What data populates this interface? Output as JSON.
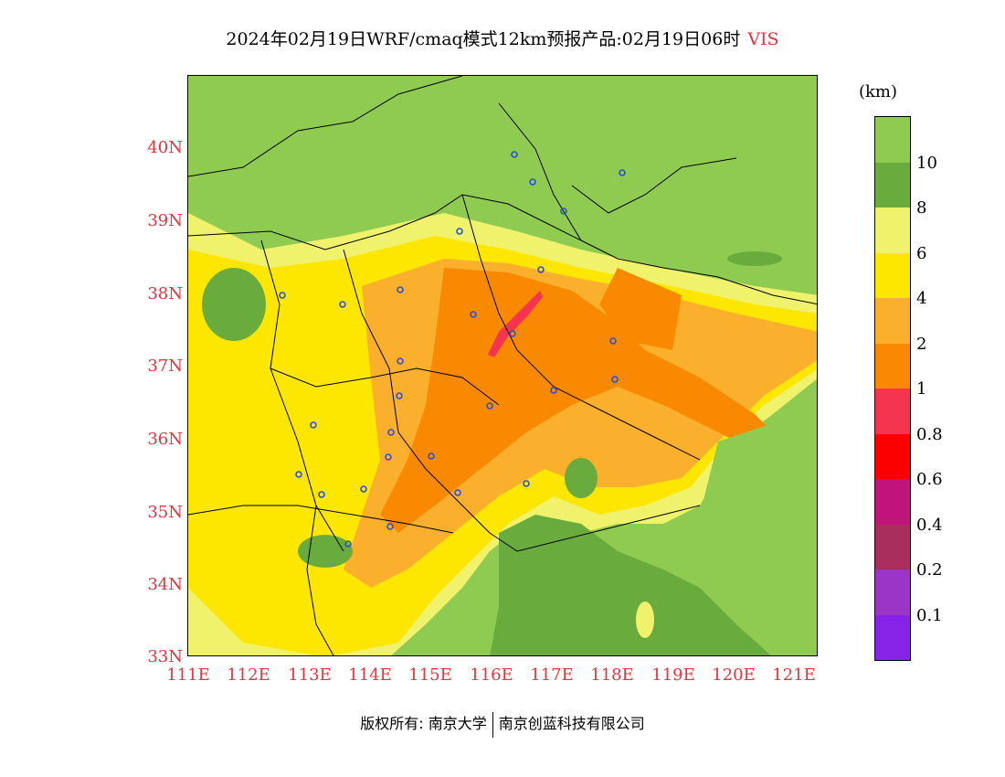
{
  "header": {
    "title": "2024年02月19日WRF/cmaq模式12km预报产品:02月19日06时",
    "variable": "VIS"
  },
  "map": {
    "lat_labels": [
      "40N",
      "39N",
      "38N",
      "37N",
      "36N",
      "35N",
      "34N",
      "33N"
    ],
    "lon_labels": [
      "111E",
      "112E",
      "113E",
      "114E",
      "115E",
      "116E",
      "117E",
      "118E",
      "119E",
      "120E",
      "121E"
    ]
  },
  "legend": {
    "unit": "(km)",
    "labels": [
      "10",
      "8",
      "6",
      "4",
      "2",
      "1",
      "0.8",
      "0.6",
      "0.4",
      "0.2",
      "0.1"
    ],
    "colors": [
      "#8ecb50",
      "#6aab3e",
      "#f0f26c",
      "#fde600",
      "#fbb02d",
      "#f98a00",
      "#f5344f",
      "#fc0000",
      "#c0147b",
      "#a92d5d",
      "#9a35c8",
      "#8623e6"
    ]
  },
  "footer": {
    "copyright": "版权所有: 南京大学",
    "company": "南京创蓝科技有限公司"
  }
}
